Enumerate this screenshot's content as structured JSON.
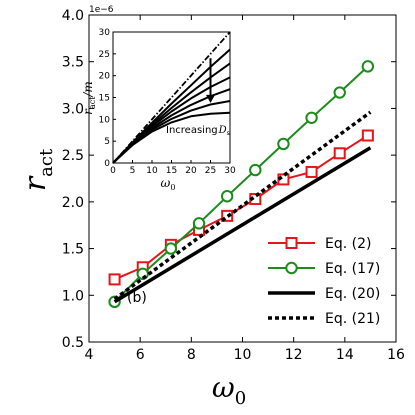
{
  "chart_data": [
    {
      "type": "line",
      "xlabel": "ω",
      "xlabel_sub": "0",
      "ylabel": "r",
      "ylabel_sub": "act",
      "xlim": [
        4,
        16
      ],
      "ylim": [
        0.5,
        4.0
      ],
      "xticks": [
        "4",
        "6",
        "8",
        "10",
        "12",
        "14",
        "16"
      ],
      "yticks": [
        "0.5",
        "1.0",
        "1.5",
        "2.0",
        "2.5",
        "3.0",
        "3.5",
        "4.0"
      ],
      "y_scale_text": "1e−6",
      "panel_label": "(b)",
      "legend_position": "lower-right",
      "series": [
        {
          "name": "Eq. (2)",
          "color": "#e8141b",
          "marker": "square",
          "style": "solid",
          "x": [
            5.0,
            6.1,
            7.2,
            8.3,
            9.4,
            10.5,
            11.6,
            12.7,
            13.8,
            14.9
          ],
          "y": [
            1.17,
            1.3,
            1.54,
            1.7,
            1.85,
            2.03,
            2.24,
            2.32,
            2.52,
            2.71
          ]
        },
        {
          "name": "Eq. (17)",
          "color": "#1a8c1a",
          "marker": "circle",
          "style": "solid",
          "x": [
            5.0,
            6.1,
            7.2,
            8.3,
            9.4,
            10.5,
            11.6,
            12.7,
            13.8,
            14.9
          ],
          "y": [
            0.93,
            1.23,
            1.5,
            1.77,
            2.06,
            2.34,
            2.62,
            2.9,
            3.17,
            3.45
          ]
        },
        {
          "name": "Eq. (20)",
          "color": "#000000",
          "marker": "none",
          "style": "solid",
          "x": [
            5.0,
            15.0
          ],
          "y": [
            0.93,
            2.58
          ]
        },
        {
          "name": "Eq. (21)",
          "color": "#000000",
          "marker": "none",
          "style": "dotted",
          "x": [
            5.0,
            15.0
          ],
          "y": [
            0.96,
            2.96
          ]
        }
      ]
    },
    {
      "type": "line",
      "role": "inset",
      "xlabel": "ω",
      "xlabel_sub": "0",
      "ylabel": "r",
      "ylabel_sub": "act",
      "ylabel_suffix": "/m",
      "xlim": [
        0,
        30
      ],
      "ylim": [
        0,
        30
      ],
      "xticks": [
        "0",
        "5",
        "10",
        "15",
        "20",
        "25",
        "30"
      ],
      "yticks": [
        "0",
        "5",
        "10",
        "15",
        "20",
        "25",
        "30"
      ],
      "annotation": "Increasing",
      "annotation_symbol": "D",
      "annotation_sub": "s",
      "arrow_x": 25,
      "arrow_y_from": 24,
      "arrow_y_to": 14,
      "reference_line": {
        "style": "dashdot",
        "x": [
          0,
          30
        ],
        "y": [
          0,
          30
        ]
      },
      "curves": [
        {
          "x": [
            0,
            5,
            10,
            15,
            20,
            25,
            30
          ],
          "y": [
            0,
            4.7,
            9.2,
            13.6,
            17.8,
            22.0,
            26.0
          ]
        },
        {
          "x": [
            0,
            5,
            10,
            15,
            20,
            25,
            30
          ],
          "y": [
            0,
            4.6,
            8.8,
            12.6,
            16.2,
            19.6,
            22.8
          ]
        },
        {
          "x": [
            0,
            5,
            10,
            15,
            20,
            25,
            30
          ],
          "y": [
            0,
            4.5,
            8.4,
            11.8,
            14.8,
            17.4,
            19.6
          ]
        },
        {
          "x": [
            0,
            5,
            10,
            15,
            20,
            25,
            30
          ],
          "y": [
            0,
            4.4,
            8.0,
            10.9,
            13.3,
            15.3,
            16.9
          ]
        },
        {
          "x": [
            0,
            5,
            10,
            15,
            20,
            25,
            30
          ],
          "y": [
            0,
            4.3,
            7.6,
            10.1,
            12.0,
            13.4,
            14.2
          ]
        },
        {
          "x": [
            0,
            5,
            10,
            15,
            20,
            25,
            30
          ],
          "y": [
            0,
            4.1,
            7.2,
            9.3,
            10.7,
            11.3,
            11.5
          ]
        }
      ]
    }
  ]
}
